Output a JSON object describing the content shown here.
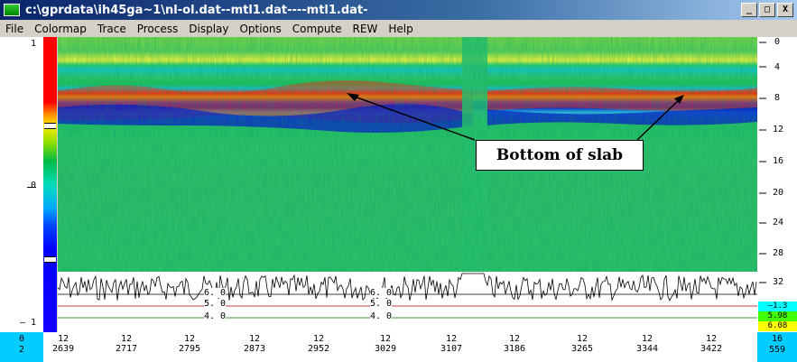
{
  "window": {
    "title": "c:\\gprdata\\ih45ga~1\\nl-ol.dat--mtl1.dat----mtl1.dat-",
    "minimize_label": "_",
    "maximize_label": "□",
    "close_label": "X"
  },
  "menu": {
    "items": [
      "File",
      "Colormap",
      "Trace",
      "Process",
      "Display",
      "Options",
      "Compute",
      "REW",
      "Help"
    ]
  },
  "left_scale": {
    "labels": [
      "1",
      "0",
      "– 1"
    ]
  },
  "depth_axis": {
    "labels": [
      "0",
      "4",
      "8",
      "12",
      "16",
      "20",
      "24",
      "28",
      "32"
    ]
  },
  "right_values": {
    "a": "–1.3",
    "b": "5.98",
    "c": "6.08"
  },
  "trace_overlay": {
    "label_left_6": "6. 0",
    "label_left_5": "5. 0",
    "label_left_4": "4. 0",
    "label_mid_6": "6. 0",
    "label_mid_5": "5. 0",
    "label_mid_4": "4. 0"
  },
  "bottom_axis": {
    "left_top": "0",
    "left_bottom": "2",
    "ticks": [
      {
        "top": "12",
        "bottom": "2639"
      },
      {
        "top": "12",
        "bottom": "2717"
      },
      {
        "top": "12",
        "bottom": "2795"
      },
      {
        "top": "12",
        "bottom": "2873"
      },
      {
        "top": "12",
        "bottom": "2952"
      },
      {
        "top": "12",
        "bottom": "3029"
      },
      {
        "top": "12",
        "bottom": "3107"
      },
      {
        "top": "12",
        "bottom": "3186"
      },
      {
        "top": "12",
        "bottom": "3265"
      },
      {
        "top": "12",
        "bottom": "3344"
      },
      {
        "top": "12",
        "bottom": "3422"
      }
    ],
    "right_top": "16",
    "right_bottom": "559"
  },
  "annotation": {
    "callout_text": "Bottom of slab"
  },
  "colors": {
    "title_bar": "#0a246a",
    "chrome": "#d4d0c8",
    "axis_cyan": "#00ccff",
    "reflection_red": "#ff2a10",
    "reflection_blue": "#0a10d8",
    "background_green": "#2ec26a"
  }
}
